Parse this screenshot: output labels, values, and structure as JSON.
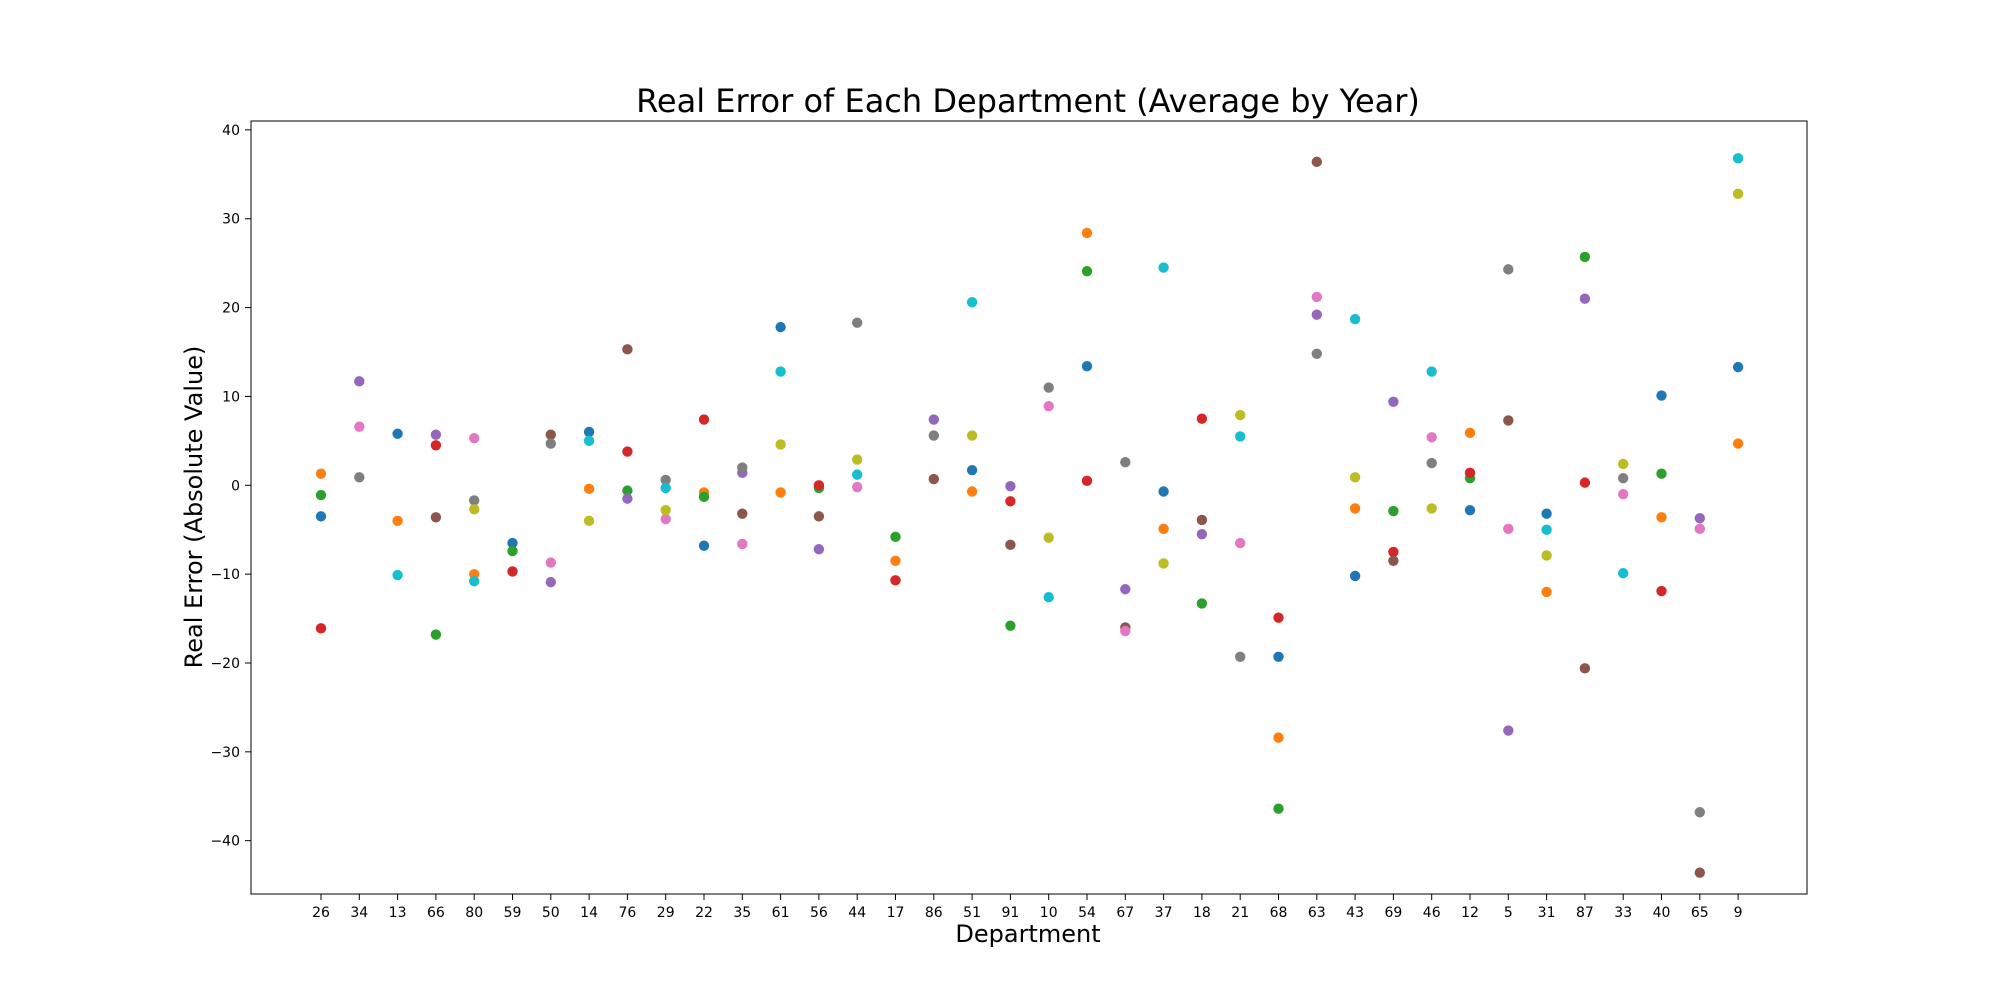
{
  "chart_data": {
    "type": "scatter",
    "title": "Real Error of Each Department (Average by Year)",
    "xlabel": "Department",
    "ylabel": "Real Error (Absolute Value)",
    "ylim": [
      -46,
      41
    ],
    "yticks": [
      -40,
      -30,
      -20,
      -10,
      0,
      10,
      20,
      30,
      40
    ],
    "grid": false,
    "legend": "none",
    "categories": [
      "26",
      "34",
      "13",
      "66",
      "80",
      "59",
      "50",
      "14",
      "76",
      "29",
      "22",
      "35",
      "61",
      "56",
      "44",
      "17",
      "86",
      "51",
      "91",
      "10",
      "54",
      "67",
      "37",
      "18",
      "21",
      "68",
      "63",
      "43",
      "69",
      "46",
      "12",
      "5",
      "31",
      "87",
      "33",
      "40",
      "65",
      "9"
    ],
    "series": [
      {
        "color": "#1f77b4",
        "values": [
          -3.5,
          null,
          5.8,
          null,
          null,
          -6.5,
          null,
          6.0,
          null,
          null,
          -6.8,
          null,
          17.8,
          null,
          null,
          null,
          null,
          1.7,
          null,
          null,
          13.4,
          null,
          -0.7,
          null,
          null,
          -19.3,
          null,
          -10.2,
          null,
          null,
          -2.8,
          null,
          -3.2,
          null,
          null,
          10.1,
          null,
          13.3
        ]
      },
      {
        "color": "#ff7f0e",
        "values": [
          1.3,
          null,
          -4.0,
          null,
          -10.0,
          null,
          null,
          -0.4,
          null,
          null,
          -0.8,
          null,
          -0.8,
          null,
          null,
          -8.5,
          null,
          -0.7,
          null,
          null,
          28.4,
          null,
          -4.9,
          null,
          null,
          -28.4,
          null,
          -2.6,
          null,
          null,
          5.9,
          null,
          -12.0,
          null,
          null,
          -3.6,
          null,
          4.7
        ]
      },
      {
        "color": "#2ca02c",
        "values": [
          -1.1,
          null,
          null,
          -16.8,
          null,
          -7.4,
          null,
          null,
          -0.6,
          null,
          -1.3,
          null,
          null,
          -0.3,
          null,
          -5.8,
          null,
          null,
          -15.8,
          null,
          24.1,
          null,
          null,
          -13.3,
          null,
          -36.4,
          null,
          null,
          -2.9,
          null,
          0.8,
          null,
          null,
          25.7,
          null,
          1.3,
          null,
          null
        ]
      },
      {
        "color": "#d62728",
        "values": [
          -16.1,
          null,
          null,
          4.5,
          null,
          -9.7,
          null,
          null,
          3.8,
          null,
          7.4,
          null,
          null,
          0.0,
          null,
          -10.7,
          null,
          null,
          -1.8,
          null,
          0.5,
          null,
          null,
          7.5,
          null,
          -14.9,
          null,
          null,
          -7.5,
          null,
          1.4,
          null,
          null,
          0.3,
          null,
          -11.9,
          null,
          null
        ]
      },
      {
        "color": "#9467bd",
        "values": [
          null,
          11.7,
          null,
          5.7,
          null,
          null,
          -10.9,
          null,
          -1.5,
          null,
          null,
          1.4,
          null,
          -7.2,
          null,
          null,
          7.4,
          null,
          -0.1,
          null,
          null,
          -11.7,
          null,
          -5.5,
          null,
          null,
          19.2,
          null,
          9.4,
          null,
          null,
          -27.6,
          null,
          21.0,
          null,
          null,
          -3.7,
          null
        ]
      },
      {
        "color": "#8c564b",
        "values": [
          null,
          null,
          null,
          -3.6,
          null,
          null,
          5.7,
          null,
          15.3,
          null,
          null,
          -3.2,
          null,
          -3.5,
          null,
          null,
          0.7,
          null,
          -6.7,
          null,
          null,
          -16.0,
          null,
          -3.9,
          null,
          null,
          36.4,
          null,
          -8.5,
          null,
          null,
          7.3,
          null,
          -20.6,
          null,
          null,
          -43.6,
          null
        ]
      },
      {
        "color": "#e377c2",
        "values": [
          null,
          6.6,
          null,
          null,
          5.3,
          null,
          -8.7,
          null,
          null,
          -3.8,
          null,
          -6.6,
          null,
          null,
          -0.2,
          null,
          null,
          null,
          null,
          8.9,
          null,
          -16.4,
          null,
          null,
          -6.5,
          null,
          21.2,
          null,
          null,
          5.4,
          null,
          -4.9,
          null,
          null,
          -1.0,
          null,
          -4.9,
          null
        ]
      },
      {
        "color": "#7f7f7f",
        "values": [
          null,
          0.9,
          null,
          null,
          -1.7,
          null,
          4.7,
          null,
          null,
          0.6,
          null,
          2.0,
          null,
          null,
          18.3,
          null,
          5.6,
          null,
          null,
          11.0,
          null,
          2.6,
          null,
          null,
          -19.3,
          null,
          14.8,
          null,
          null,
          2.5,
          null,
          24.3,
          null,
          null,
          0.8,
          null,
          -36.8,
          null
        ]
      },
      {
        "color": "#bcbd22",
        "values": [
          null,
          null,
          null,
          null,
          -2.7,
          null,
          null,
          -4.0,
          null,
          -2.8,
          null,
          null,
          4.6,
          null,
          2.9,
          null,
          null,
          5.6,
          null,
          -5.9,
          null,
          null,
          -8.8,
          null,
          7.9,
          null,
          null,
          0.9,
          null,
          -2.6,
          null,
          null,
          -7.9,
          null,
          2.4,
          null,
          null,
          32.8
        ]
      },
      {
        "color": "#17becf",
        "values": [
          null,
          null,
          -10.1,
          null,
          -10.8,
          null,
          null,
          5.0,
          null,
          -0.3,
          null,
          null,
          12.8,
          null,
          1.2,
          null,
          null,
          20.6,
          null,
          -12.6,
          null,
          null,
          24.5,
          null,
          5.5,
          null,
          null,
          18.7,
          null,
          12.8,
          null,
          null,
          -5.0,
          null,
          -9.9,
          null,
          null,
          36.8
        ]
      }
    ]
  }
}
